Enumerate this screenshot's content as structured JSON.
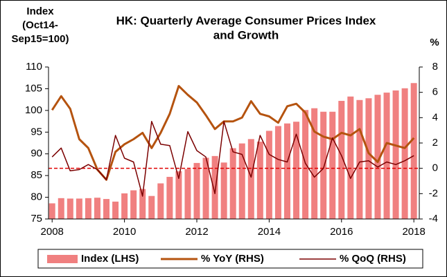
{
  "chart_data": {
    "type": "bar_line",
    "title": [
      "HK: Quarterly Average Consumer Prices Index",
      "and Growth"
    ],
    "ylabel": [
      "Index",
      "(Oct14-",
      "Sep15=100)"
    ],
    "y2label": "%",
    "x": [
      2008,
      2008.25,
      2008.5,
      2008.75,
      2009,
      2009.25,
      2009.5,
      2009.75,
      2010,
      2010.25,
      2010.5,
      2010.75,
      2011,
      2011.25,
      2011.5,
      2011.75,
      2012,
      2012.25,
      2012.5,
      2012.75,
      2013,
      2013.25,
      2013.5,
      2013.75,
      2014,
      2014.25,
      2014.5,
      2014.75,
      2015,
      2015.25,
      2015.5,
      2015.75,
      2016,
      2016.25,
      2016.5,
      2016.75,
      2017,
      2017.25,
      2017.5,
      2017.75,
      2018
    ],
    "series": [
      {
        "name": "Index (LHS)",
        "color": "#f08080",
        "kind": "bar",
        "values": [
          78.6,
          79.8,
          79.7,
          79.7,
          79.8,
          79.9,
          79.6,
          79.0,
          80.9,
          81.6,
          81.9,
          80.3,
          83.2,
          84.7,
          86.0,
          86.5,
          87.9,
          89.1,
          89.5,
          88.0,
          91.3,
          92.4,
          93.4,
          92.8,
          95.3,
          96.4,
          97.0,
          97.4,
          100.1,
          100.5,
          99.7,
          99.7,
          102.2,
          103.2,
          102.4,
          102.8,
          103.6,
          104.1,
          104.6,
          105.1,
          106.3
        ]
      },
      {
        "name": "% YoY (RHS)",
        "color": "#b5530f",
        "kind": "line",
        "axis": "y2",
        "width": 3,
        "values": [
          4.6,
          5.7,
          4.7,
          2.3,
          1.6,
          -0.1,
          -0.9,
          1.3,
          1.9,
          2.3,
          2.8,
          1.6,
          2.8,
          4.3,
          6.5,
          5.8,
          5.2,
          4.2,
          3.1,
          3.7,
          3.7,
          4.0,
          5.3,
          4.3,
          4.1,
          3.6,
          4.9,
          5.1,
          4.4,
          2.9,
          2.5,
          2.3,
          2.8,
          2.6,
          3.1,
          1.2,
          0.5,
          2.0,
          1.8,
          1.6,
          2.4
        ]
      },
      {
        "name": "% QoQ (RHS)",
        "color": "#7b0000",
        "kind": "line",
        "axis": "y2",
        "width": 1.5,
        "values": [
          0.9,
          1.6,
          -0.2,
          -0.1,
          0.3,
          -0.1,
          -0.9,
          2.6,
          0.8,
          0.5,
          -2.2,
          3.7,
          1.9,
          1.8,
          -0.8,
          2.9,
          1.4,
          0.9,
          -2.0,
          3.7,
          1.3,
          1.1,
          -0.7,
          2.6,
          1.1,
          0.7,
          0.5,
          2.7,
          0.4,
          -0.7,
          0.0,
          2.4,
          1.0,
          -0.8,
          0.5,
          0.6,
          0.1,
          0.5,
          0.3,
          0.6,
          1.0
        ]
      }
    ],
    "reference_line": {
      "axis": "y2",
      "value": 0,
      "color": "#e00000"
    },
    "xlim": [
      2007.9,
      2018.15
    ],
    "xticks": [
      2008,
      2010,
      2012,
      2014,
      2016,
      2018
    ],
    "ylim": [
      75,
      110
    ],
    "yticks": [
      75,
      80,
      85,
      90,
      95,
      100,
      105,
      110
    ],
    "y2lim": [
      -4,
      8
    ],
    "y2ticks": [
      -4,
      -2,
      0,
      2,
      4,
      6,
      8
    ],
    "grid": false,
    "legend": "bottom"
  }
}
